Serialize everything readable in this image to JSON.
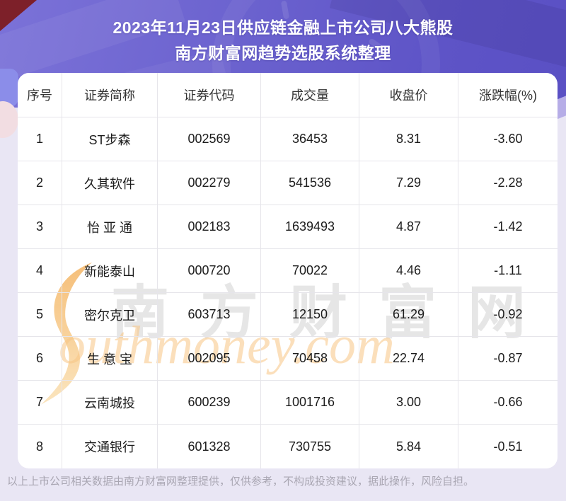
{
  "header": {
    "title_line1": "2023年11月23日供应链金融上市公司八大熊股",
    "title_line2": "南方财富网趋势选股系统整理"
  },
  "chart_data": {
    "type": "table",
    "title": "2023年11月23日供应链金融上市公司八大熊股",
    "subtitle": "南方财富网趋势选股系统整理",
    "columns": [
      "序号",
      "证券简称",
      "证券代码",
      "成交量",
      "收盘价",
      "涨跌幅(%)"
    ],
    "rows": [
      [
        "1",
        "ST步森",
        "002569",
        "36453",
        "8.31",
        "-3.60"
      ],
      [
        "2",
        "久其软件",
        "002279",
        "541536",
        "7.29",
        "-2.28"
      ],
      [
        "3",
        "怡 亚 通",
        "002183",
        "1639493",
        "4.87",
        "-1.42"
      ],
      [
        "4",
        "新能泰山",
        "000720",
        "70022",
        "4.46",
        "-1.11"
      ],
      [
        "5",
        "密尔克卫",
        "603713",
        "12150",
        "61.29",
        "-0.92"
      ],
      [
        "6",
        "生 意 宝",
        "002095",
        "70458",
        "22.74",
        "-0.87"
      ],
      [
        "7",
        "云南城投",
        "600239",
        "1001716",
        "3.00",
        "-0.66"
      ],
      [
        "8",
        "交通银行",
        "601328",
        "730755",
        "5.84",
        "-0.51"
      ]
    ]
  },
  "watermark": {
    "cn": "南方财富网",
    "en": "outhmoney.com",
    "s_color_top": "#f1a13b",
    "s_color_bottom": "#f9dba6"
  },
  "footer": {
    "disclaimer": "以上上市公司相关数据由南方财富网整理提供，仅供参考，不构成投资建议，据此操作，风险自担。"
  },
  "colors": {
    "banner_purple": "#6c63cf",
    "page_background": "#e9e6f4",
    "card_background": "#ffffff",
    "divider": "#e6e5ea",
    "title_text": "#ffffff",
    "cell_text": "#1c1c1c",
    "footer_text": "#a9a6b2",
    "corner_accent": "#7d2029"
  }
}
